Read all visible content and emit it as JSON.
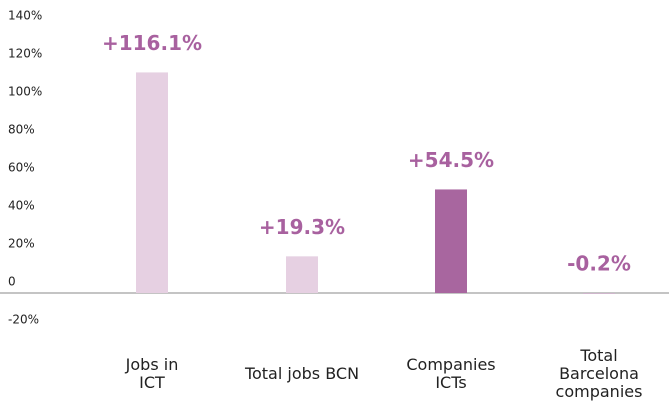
{
  "chart_data": {
    "type": "bar",
    "categories": [
      "Jobs in\nICT",
      "Total jobs BCN",
      "Companies\nICTs",
      "Total\nBarcelona\ncompanies"
    ],
    "values": [
      116.1,
      19.3,
      54.5,
      -0.2
    ],
    "value_labels": [
      "+116.1%",
      "+19.3%",
      "+54.5%",
      "-0.2%"
    ],
    "colors": [
      "#e6d0e2",
      "#e6d0e2",
      "#a8669f",
      "#a8669f"
    ],
    "label_color": "#a8619f",
    "ylim": [
      -20,
      140
    ],
    "yticks": [
      {
        "value": -20,
        "label": "-20%"
      },
      0,
      {
        "value": 20,
        "label": "20%"
      },
      {
        "value": 40,
        "label": "40%"
      },
      {
        "value": 60,
        "label": "60%"
      },
      {
        "value": 80,
        "label": "80%"
      },
      {
        "value": 100,
        "label": "100%"
      },
      {
        "value": 120,
        "label": "120%"
      },
      {
        "value": 140,
        "label": "140%"
      }
    ],
    "grid": false
  }
}
